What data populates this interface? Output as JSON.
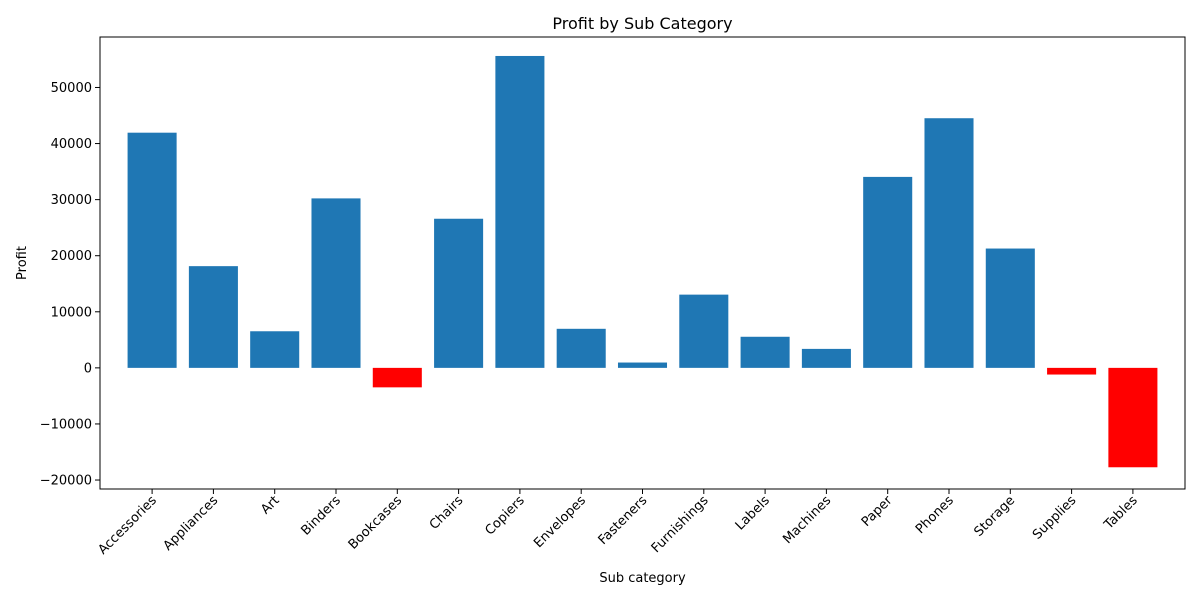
{
  "chart_data": {
    "type": "bar",
    "title": "Profit by Sub Category",
    "xlabel": "Sub category",
    "ylabel": "Profit",
    "categories": [
      "Accessories",
      "Appliances",
      "Art",
      "Binders",
      "Bookcases",
      "Chairs",
      "Copiers",
      "Envelopes",
      "Fasteners",
      "Furnishings",
      "Labels",
      "Machines",
      "Paper",
      "Phones",
      "Storage",
      "Supplies",
      "Tables"
    ],
    "values": [
      41937,
      18138,
      6528,
      30222,
      -3473,
      26590,
      55618,
      6964,
      950,
      13059,
      5546,
      3385,
      34054,
      44516,
      21279,
      -1189,
      -17725
    ],
    "ylim": [
      -21600,
      59000
    ],
    "yticks": [
      -20000,
      -10000,
      0,
      10000,
      20000,
      30000,
      40000,
      50000
    ],
    "ytick_labels": [
      "−20000",
      "−10000",
      "0",
      "10000",
      "20000",
      "30000",
      "40000",
      "50000"
    ],
    "colors": {
      "positive": "#1f77b4",
      "negative": "#ff0000"
    },
    "grid": false,
    "legend": "none"
  }
}
